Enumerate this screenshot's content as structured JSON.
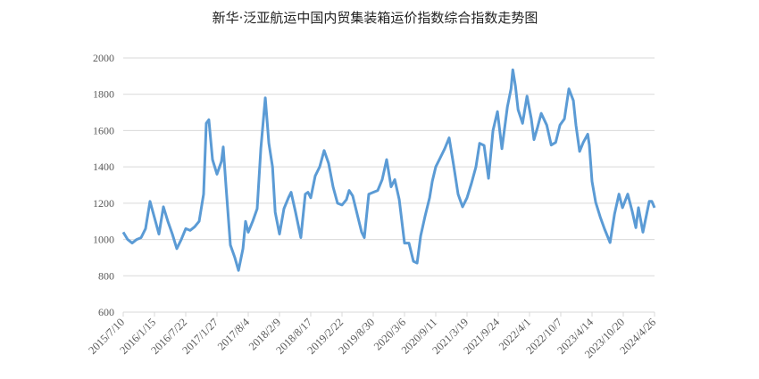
{
  "chart_data": {
    "type": "line",
    "title": "新华·泛亚航运中国内贸集装箱运价指数综合指数走势图",
    "xlabel": "",
    "ylabel": "",
    "ylim": [
      600,
      2000
    ],
    "yticks": [
      600,
      800,
      1000,
      1200,
      1400,
      1600,
      1800,
      2000
    ],
    "xticks": [
      "2015/7/10",
      "2016/1/15",
      "2016/7/22",
      "2017/1/27",
      "2017/8/4",
      "2018/2/9",
      "2018/8/17",
      "2019/2/22",
      "2019/8/30",
      "2020/3/6",
      "2020/9/11",
      "2021/3/19",
      "2021/9/24",
      "2022/4/1",
      "2022/10/7",
      "2023/4/14",
      "2023/10/20",
      "2024/4/26"
    ],
    "grid": "horizontal",
    "legend": "none",
    "line_color": "#5b9bd5",
    "series": [
      {
        "points": [
          [
            "2015-07-10",
            1040
          ],
          [
            "2015-08-06",
            1000
          ],
          [
            "2015-09-02",
            980
          ],
          [
            "2015-09-29",
            1000
          ],
          [
            "2015-10-26",
            1010
          ],
          [
            "2015-11-22",
            1060
          ],
          [
            "2015-12-19",
            1210
          ],
          [
            "2016-01-15",
            1120
          ],
          [
            "2016-02-11",
            1030
          ],
          [
            "2016-03-09",
            1180
          ],
          [
            "2016-04-05",
            1100
          ],
          [
            "2016-05-02",
            1030
          ],
          [
            "2016-05-29",
            950
          ],
          [
            "2016-06-25",
            1000
          ],
          [
            "2016-07-22",
            1060
          ],
          [
            "2016-08-18",
            1050
          ],
          [
            "2016-09-14",
            1070
          ],
          [
            "2016-10-11",
            1100
          ],
          [
            "2016-11-07",
            1250
          ],
          [
            "2016-11-23",
            1640
          ],
          [
            "2016-12-09",
            1660
          ],
          [
            "2016-12-31",
            1440
          ],
          [
            "2017-01-27",
            1360
          ],
          [
            "2017-02-23",
            1430
          ],
          [
            "2017-03-06",
            1510
          ],
          [
            "2017-03-22",
            1300
          ],
          [
            "2017-04-18",
            970
          ],
          [
            "2017-05-15",
            900
          ],
          [
            "2017-06-06",
            830
          ],
          [
            "2017-07-03",
            950
          ],
          [
            "2017-07-19",
            1100
          ],
          [
            "2017-08-04",
            1040
          ],
          [
            "2017-08-31",
            1100
          ],
          [
            "2017-09-27",
            1170
          ],
          [
            "2017-10-19",
            1500
          ],
          [
            "2017-11-15",
            1780
          ],
          [
            "2017-12-07",
            1530
          ],
          [
            "2017-12-29",
            1400
          ],
          [
            "2018-01-14",
            1150
          ],
          [
            "2018-02-09",
            1030
          ],
          [
            "2018-03-08",
            1170
          ],
          [
            "2018-04-04",
            1230
          ],
          [
            "2018-04-20",
            1260
          ],
          [
            "2018-05-17",
            1150
          ],
          [
            "2018-06-18",
            1010
          ],
          [
            "2018-07-15",
            1250
          ],
          [
            "2018-07-31",
            1260
          ],
          [
            "2018-08-17",
            1230
          ],
          [
            "2018-09-13",
            1350
          ],
          [
            "2018-10-10",
            1400
          ],
          [
            "2018-11-06",
            1490
          ],
          [
            "2018-12-03",
            1420
          ],
          [
            "2018-12-30",
            1290
          ],
          [
            "2019-01-26",
            1200
          ],
          [
            "2019-02-22",
            1190
          ],
          [
            "2019-03-21",
            1220
          ],
          [
            "2019-04-06",
            1270
          ],
          [
            "2019-04-28",
            1240
          ],
          [
            "2019-05-25",
            1140
          ],
          [
            "2019-06-21",
            1040
          ],
          [
            "2019-07-07",
            1010
          ],
          [
            "2019-08-03",
            1250
          ],
          [
            "2019-08-30",
            1260
          ],
          [
            "2019-09-26",
            1270
          ],
          [
            "2019-10-23",
            1330
          ],
          [
            "2019-11-19",
            1440
          ],
          [
            "2019-12-16",
            1290
          ],
          [
            "2020-01-07",
            1330
          ],
          [
            "2020-02-03",
            1220
          ],
          [
            "2020-03-06",
            980
          ],
          [
            "2020-04-02",
            980
          ],
          [
            "2020-04-29",
            880
          ],
          [
            "2020-05-21",
            870
          ],
          [
            "2020-06-12",
            1020
          ],
          [
            "2020-07-09",
            1130
          ],
          [
            "2020-08-05",
            1230
          ],
          [
            "2020-08-21",
            1320
          ],
          [
            "2020-09-11",
            1400
          ],
          [
            "2020-10-08",
            1450
          ],
          [
            "2020-11-04",
            1500
          ],
          [
            "2020-12-01",
            1560
          ],
          [
            "2020-12-28",
            1410
          ],
          [
            "2021-01-24",
            1250
          ],
          [
            "2021-02-20",
            1180
          ],
          [
            "2021-03-19",
            1230
          ],
          [
            "2021-04-15",
            1310
          ],
          [
            "2021-05-12",
            1400
          ],
          [
            "2021-06-03",
            1530
          ],
          [
            "2021-06-30",
            1518
          ],
          [
            "2021-07-27",
            1337
          ],
          [
            "2021-08-23",
            1600
          ],
          [
            "2021-09-19",
            1705
          ],
          [
            "2021-10-16",
            1500
          ],
          [
            "2021-11-18",
            1730
          ],
          [
            "2021-12-10",
            1830
          ],
          [
            "2021-12-21",
            1935
          ],
          [
            "2022-01-06",
            1843
          ],
          [
            "2022-01-22",
            1715
          ],
          [
            "2022-02-18",
            1640
          ],
          [
            "2022-03-17",
            1790
          ],
          [
            "2022-04-12",
            1665
          ],
          [
            "2022-04-28",
            1550
          ],
          [
            "2022-05-20",
            1620
          ],
          [
            "2022-06-11",
            1695
          ],
          [
            "2022-07-14",
            1630
          ],
          [
            "2022-08-10",
            1520
          ],
          [
            "2022-09-06",
            1535
          ],
          [
            "2022-10-02",
            1630
          ],
          [
            "2022-10-29",
            1665
          ],
          [
            "2022-11-25",
            1830
          ],
          [
            "2022-12-22",
            1765
          ],
          [
            "2023-01-07",
            1630
          ],
          [
            "2023-01-29",
            1485
          ],
          [
            "2023-02-20",
            1535
          ],
          [
            "2023-03-19",
            1580
          ],
          [
            "2023-03-29",
            1520
          ],
          [
            "2023-04-14",
            1320
          ],
          [
            "2023-05-06",
            1205
          ],
          [
            "2023-06-02",
            1125
          ],
          [
            "2023-06-29",
            1057
          ],
          [
            "2023-08-01",
            983
          ],
          [
            "2023-08-28",
            1140
          ],
          [
            "2023-09-24",
            1250
          ],
          [
            "2023-10-15",
            1175
          ],
          [
            "2023-11-16",
            1250
          ],
          [
            "2023-12-13",
            1155
          ],
          [
            "2024-01-04",
            1065
          ],
          [
            "2024-01-20",
            1175
          ],
          [
            "2024-02-16",
            1040
          ],
          [
            "2024-03-25",
            1210
          ],
          [
            "2024-04-10",
            1210
          ],
          [
            "2024-04-26",
            1175
          ]
        ]
      }
    ]
  }
}
